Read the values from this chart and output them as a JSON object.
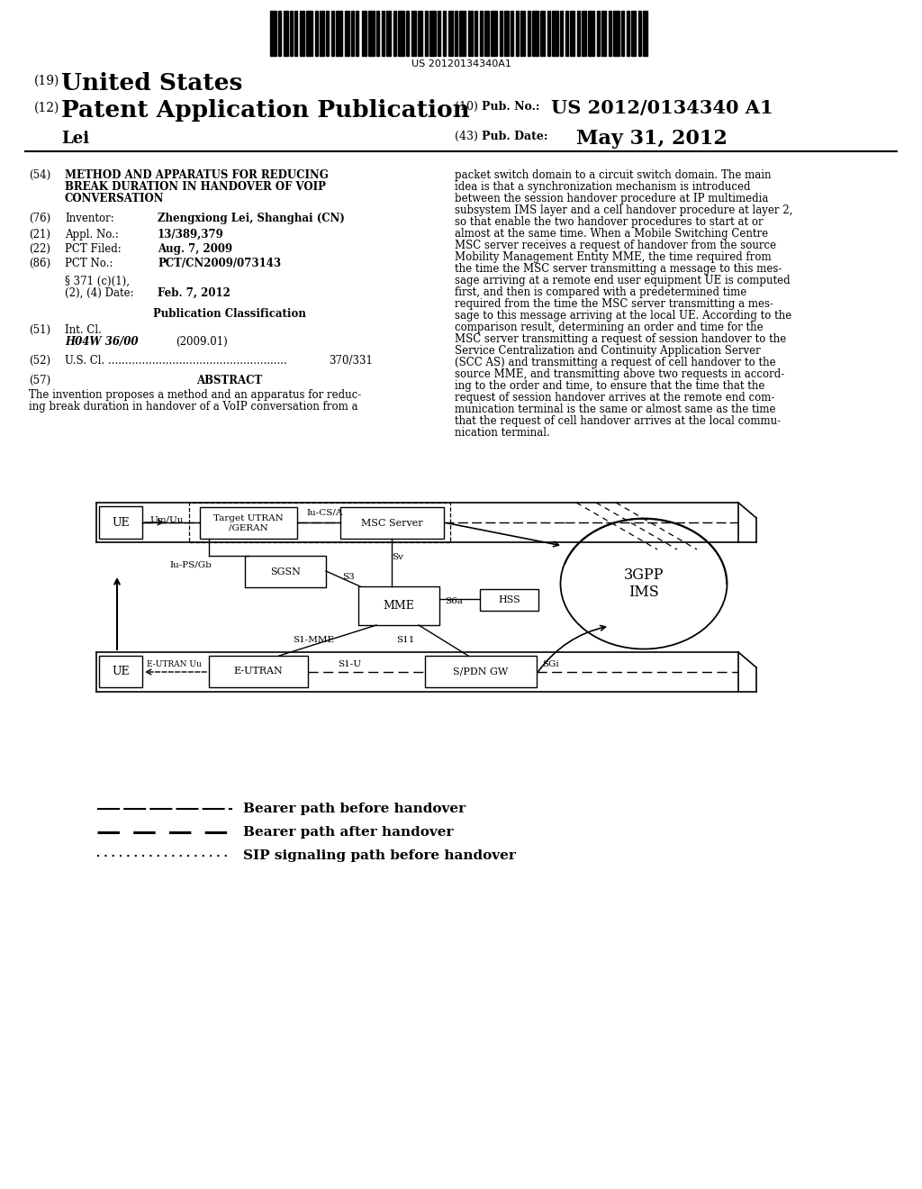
{
  "bg_color": "#ffffff",
  "barcode_text": "US 20120134340A1",
  "field_54_lines": [
    "METHOD AND APPARATUS FOR REDUCING",
    "BREAK DURATION IN HANDOVER OF VOIP",
    "CONVERSATION"
  ],
  "field_76_value": "Zhengxiong Lei, Shanghai (CN)",
  "field_21_value": "13/389,379",
  "field_22_value": "Aug. 7, 2009",
  "field_86_value": "PCT/CN2009/073143",
  "field_371_value": "Feb. 7, 2012",
  "field_51_class": "H04W 36/00",
  "field_51_year": "(2009.01)",
  "field_52_dots": "U.S. Cl. .....................................................",
  "field_52_value": "370/331",
  "abstract_lines": [
    "The invention proposes a method and an apparatus for reduc-",
    "ing break duration in handover of a VoIP conversation from a"
  ],
  "right_col_lines": [
    "packet switch domain to a circuit switch domain. The main",
    "idea is that a synchronization mechanism is introduced",
    "between the session handover procedure at IP multimedia",
    "subsystem IMS layer and a cell handover procedure at layer 2,",
    "so that enable the two handover procedures to start at or",
    "almost at the same time. When a Mobile Switching Centre",
    "MSC server receives a request of handover from the source",
    "Mobility Management Entity MME, the time required from",
    "the time the MSC server transmitting a message to this mes-",
    "sage arriving at a remote end user equipment UE is computed",
    "first, and then is compared with a predetermined time",
    "required from the time the MSC server transmitting a mes-",
    "sage to this message arriving at the local UE. According to the",
    "comparison result, determining an order and time for the",
    "MSC server transmitting a request of session handover to the",
    "Service Centralization and Continuity Application Server",
    "(SCC AS) and transmitting a request of cell handover to the",
    "source MME, and transmitting above two requests in accord-",
    "ing to the order and time, to ensure that the time that the",
    "request of session handover arrives at the remote end com-",
    "munication terminal is the same or almost same as the time",
    "that the request of cell handover arrives at the local commu-",
    "nication terminal."
  ],
  "legend_1": "Bearer path before handover",
  "legend_2": "Bearer path after handover",
  "legend_3": "SIP signaling path before handover"
}
